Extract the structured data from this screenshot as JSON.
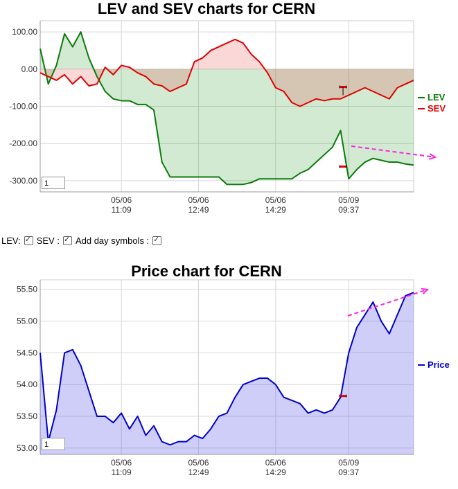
{
  "lev_sev_chart": {
    "title": "LEV and SEV charts for CERN",
    "zoom_value": "1",
    "legend": [
      {
        "label": "LEV",
        "color": "#0a7a0a"
      },
      {
        "label": "SEV",
        "color": "#e00000"
      }
    ]
  },
  "controls": {
    "lev_label": "LEV:",
    "sev_label": "SEV :",
    "day_symbols_label": "Add day symbols :"
  },
  "price_chart": {
    "title": "Price chart for CERN",
    "zoom_value": "1",
    "legend": [
      {
        "label": "Price",
        "color": "#0000cc"
      }
    ]
  },
  "chart_data": [
    {
      "type": "area",
      "title": "LEV and SEV charts for CERN",
      "xlabel": "",
      "ylabel": "",
      "ylim": [
        -330,
        130
      ],
      "y_ticks": [
        "100.00",
        "0.00",
        "-100.00",
        "-200.00",
        "-300.00"
      ],
      "y_tick_values": [
        100,
        0,
        -100,
        -200,
        -300
      ],
      "x_ticks": [
        {
          "date": "05/06",
          "time": "11:09"
        },
        {
          "date": "05/06",
          "time": "12:49"
        },
        {
          "date": "05/06",
          "time": "14:29"
        },
        {
          "date": "05/09",
          "time": "09:37"
        }
      ],
      "x_tick_index": [
        10,
        19.5,
        29,
        38
      ],
      "x_range": [
        0,
        46
      ],
      "day_marker_index": 37.3,
      "grid": true,
      "legend_position": "right",
      "series": [
        {
          "name": "LEV",
          "color": "#0a7a0a",
          "values": [
            55,
            -40,
            10,
            95,
            60,
            100,
            30,
            -20,
            -60,
            -80,
            -85,
            -85,
            -95,
            -95,
            -110,
            -250,
            -290,
            -290,
            -290,
            -290,
            -290,
            -290,
            -290,
            -310,
            -310,
            -310,
            -305,
            -295,
            -295,
            -295,
            -295,
            -295,
            -280,
            -270,
            -250,
            -230,
            -210,
            -165,
            -295,
            -270,
            -250,
            -240,
            -245,
            -250,
            -250,
            -255,
            -258
          ]
        },
        {
          "name": "SEV",
          "color": "#e00000",
          "values": [
            -10,
            -20,
            -30,
            -15,
            -40,
            -20,
            -45,
            -40,
            5,
            -15,
            10,
            5,
            -10,
            -20,
            -40,
            -45,
            -60,
            -50,
            -40,
            20,
            30,
            50,
            60,
            70,
            80,
            70,
            40,
            20,
            -10,
            -50,
            -60,
            -90,
            -100,
            -90,
            -80,
            -85,
            -80,
            -80,
            -70,
            -60,
            -50,
            -60,
            -70,
            -80,
            -50,
            -40,
            -30
          ]
        }
      ],
      "annotation_arrow": "downward-right dashed arrow at end of LEV"
    },
    {
      "type": "area",
      "title": "Price chart for CERN",
      "xlabel": "",
      "ylabel": "",
      "ylim": [
        52.9,
        55.65
      ],
      "y_ticks": [
        "55.50",
        "55.00",
        "54.50",
        "54.00",
        "53.50",
        "53.00"
      ],
      "y_tick_values": [
        55.5,
        55.0,
        54.5,
        54.0,
        53.5,
        53.0
      ],
      "x_ticks": [
        {
          "date": "05/06",
          "time": "11:09"
        },
        {
          "date": "05/06",
          "time": "12:49"
        },
        {
          "date": "05/06",
          "time": "14:29"
        },
        {
          "date": "05/09",
          "time": "09:37"
        }
      ],
      "x_tick_index": [
        10,
        19.5,
        29,
        38
      ],
      "x_range": [
        0,
        46
      ],
      "day_marker_index": 37.3,
      "grid": true,
      "legend_position": "right",
      "series": [
        {
          "name": "Price",
          "color": "#0000cc",
          "values": [
            54.5,
            53.1,
            53.6,
            54.5,
            54.55,
            54.3,
            53.9,
            53.5,
            53.5,
            53.4,
            53.55,
            53.3,
            53.5,
            53.2,
            53.35,
            53.1,
            53.05,
            53.1,
            53.1,
            53.2,
            53.15,
            53.3,
            53.5,
            53.55,
            53.8,
            54.0,
            54.05,
            54.1,
            54.1,
            54.0,
            53.8,
            53.75,
            53.7,
            53.55,
            53.6,
            53.55,
            53.6,
            53.8,
            54.5,
            54.9,
            55.1,
            55.3,
            55.0,
            54.8,
            55.1,
            55.4,
            55.45
          ]
        }
      ],
      "annotation_arrow": "upward-right dashed arrow at end of Price"
    }
  ]
}
